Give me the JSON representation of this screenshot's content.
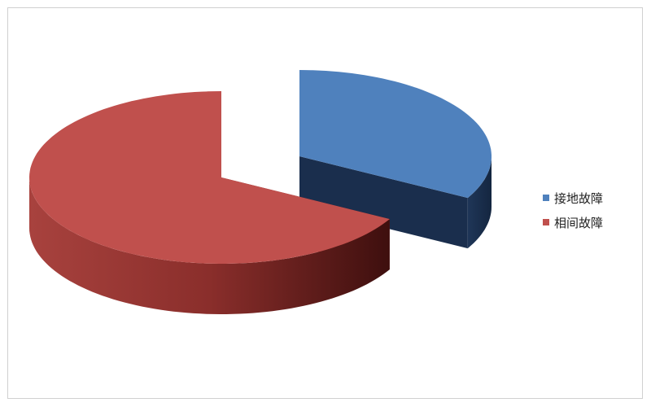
{
  "chart_data": {
    "type": "pie",
    "style": "3d-exploded",
    "slices": [
      {
        "label": "接地故障",
        "value": 33,
        "color": "#4f81bd",
        "exploded": true
      },
      {
        "label": "相间故障",
        "value": 67,
        "color": "#c0504d",
        "exploded": false
      }
    ],
    "legend_position": "right",
    "data_labels": false
  }
}
